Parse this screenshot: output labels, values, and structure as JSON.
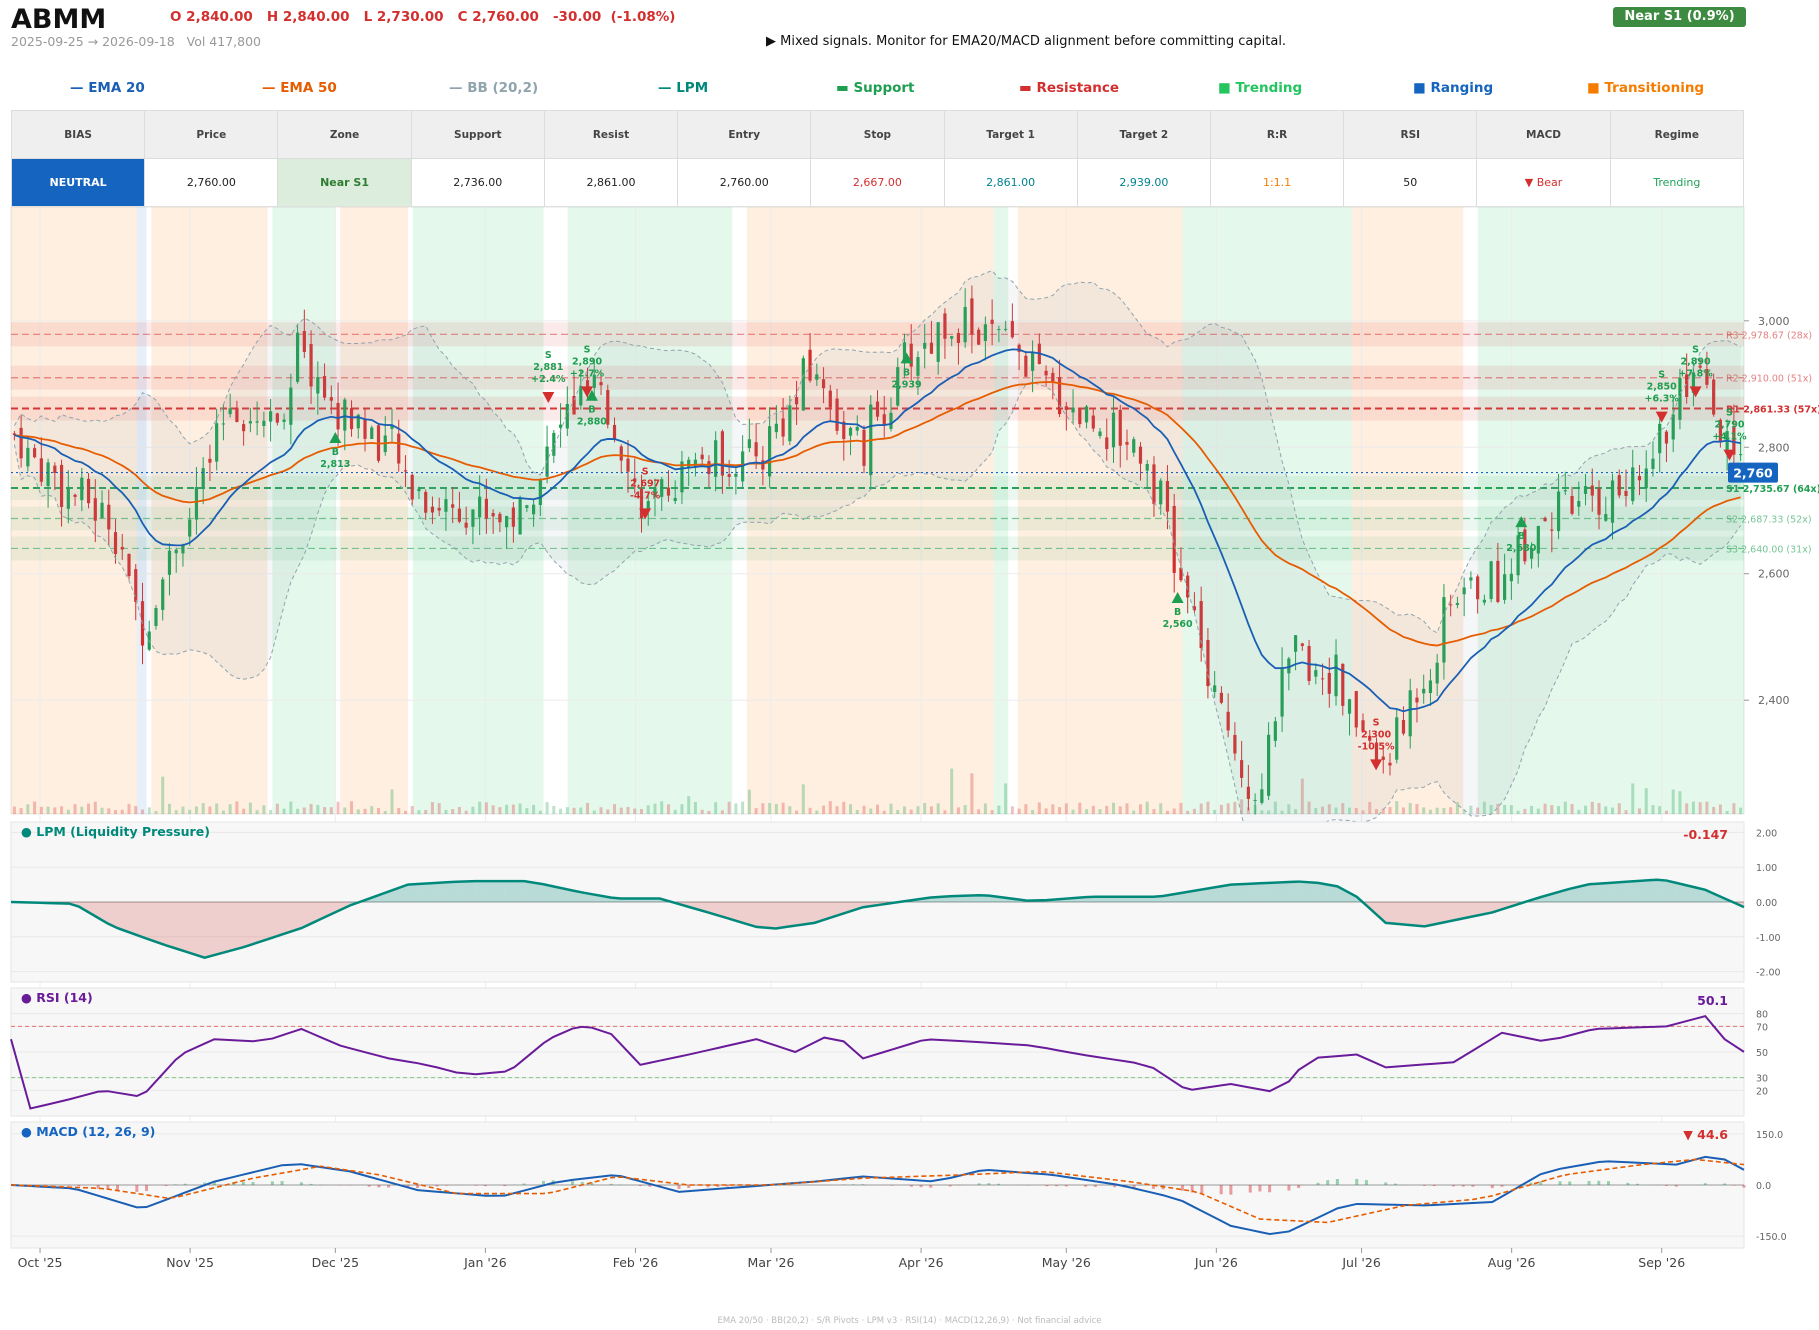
{
  "header": {
    "ticker": "ABMM",
    "ohlc": "O 2,840.00   H 2,840.00   L 2,730.00   C 2,760.00   -30.00  (-1.08%)",
    "date_range": "2025-09-25 → 2026-09-18   Vol 417,800",
    "signal": "▶  Mixed signals. Monitor for EMA20/MACD alignment before committing capital.",
    "zone_badge": "Near S1  (0.9%)"
  },
  "legend": [
    {
      "label": "— EMA 20",
      "color": "#1a5fb4"
    },
    {
      "label": "— EMA 50",
      "color": "#e65c00"
    },
    {
      "label": "— BB (20,2)",
      "color": "#90a4ae"
    },
    {
      "label": "— LPM",
      "color": "#00897b"
    },
    {
      "label": "▬  Support",
      "color": "#1e9e50"
    },
    {
      "label": "▬  Resistance",
      "color": "#d32f2f"
    },
    {
      "label": "■  Trending",
      "color": "#22c55e"
    },
    {
      "label": "■  Ranging",
      "color": "#1565c0"
    },
    {
      "label": "■  Transitioning",
      "color": "#f57c00"
    }
  ],
  "table": {
    "headers": [
      "BIAS",
      "Price",
      "Zone",
      "Support",
      "Resist",
      "Entry",
      "Stop",
      "Target 1",
      "Target 2",
      "R:R",
      "RSI",
      "MACD",
      "Regime"
    ],
    "values": [
      "NEUTRAL",
      "2,760.00",
      "Near S1",
      "2,736.00",
      "2,861.00",
      "2,760.00",
      "2,667.00",
      "2,861.00",
      "2,939.00",
      "1:1.1",
      "50",
      "▼ Bear",
      "Trending"
    ],
    "value_colors": [
      "#ffffff",
      "#222222",
      "#2e7d32",
      "#222222",
      "#222222",
      "#222222",
      "#d32f2f",
      "#00838f",
      "#00838f",
      "#f57c00",
      "#222222",
      "#d32f2f",
      "#22a35a"
    ]
  },
  "footer": "EMA 20/50  ·  BB(20,2)  ·  S/R Pivots  ·  LPM v3  ·  RSI(14)  ·  MACD(12,26,9)  ·  Not financial advice",
  "chart_data": [
    {
      "type": "candlestick",
      "title": "ABMM",
      "x_ticks": [
        "Oct '25",
        "Nov '25",
        "Dec '25",
        "Jan '26",
        "Feb '26",
        "Mar '26",
        "Apr '26",
        "May '26",
        "Jun '26",
        "Jul '26",
        "Aug '26",
        "Sep '26"
      ],
      "y_ticks": [
        2400,
        2600,
        2800,
        3000
      ],
      "ylim": [
        2220,
        3180
      ],
      "current_price": 2760,
      "current_price_label": "2,760",
      "levels": [
        {
          "label": "R3 2,978.67 (28x)",
          "value": 2978.67,
          "kind": "resistance"
        },
        {
          "label": "R2 2,910.00 (51x)",
          "value": 2910.0,
          "kind": "resistance"
        },
        {
          "label": "R1 2,861.33 (57x)",
          "value": 2861.33,
          "kind": "resistance"
        },
        {
          "label": "S1 2,735.67 (64x)",
          "value": 2735.67,
          "kind": "support"
        },
        {
          "label": "S2 2,687.33 (52x)",
          "value": 2687.33,
          "kind": "support"
        },
        {
          "label": "S3 2,640.00 (31x)",
          "value": 2640.0,
          "kind": "support"
        }
      ],
      "regimes": [
        {
          "kind": "transitioning",
          "from": "2025-09-25",
          "to": "2025-10-21"
        },
        {
          "kind": "ranging",
          "from": "2025-10-21",
          "to": "2025-10-23"
        },
        {
          "kind": "transitioning",
          "from": "2025-10-24",
          "to": "2025-11-17"
        },
        {
          "kind": "trending",
          "from": "2025-11-18",
          "to": "2025-12-01"
        },
        {
          "kind": "transitioning",
          "from": "2025-12-02",
          "to": "2025-12-16"
        },
        {
          "kind": "trending",
          "from": "2025-12-17",
          "to": "2026-01-13"
        },
        {
          "kind": "trending",
          "from": "2026-01-18",
          "to": "2026-02-21"
        },
        {
          "kind": "transitioning",
          "from": "2026-02-24",
          "to": "2026-04-16"
        },
        {
          "kind": "trending",
          "from": "2026-04-16",
          "to": "2026-04-19"
        },
        {
          "kind": "transitioning",
          "from": "2026-04-21",
          "to": "2026-05-25"
        },
        {
          "kind": "trending",
          "from": "2026-05-25",
          "to": "2026-06-29"
        },
        {
          "kind": "transitioning",
          "from": "2026-06-29",
          "to": "2026-07-22"
        },
        {
          "kind": "trending",
          "from": "2026-07-25",
          "to": "2026-09-18"
        }
      ],
      "signals": [
        {
          "side": "B",
          "date": "2025-12-01",
          "price": 2813,
          "label": "B\n2,813"
        },
        {
          "side": "S",
          "date": "2026-01-14",
          "price": 2881,
          "label": "S\n2,881\n+2.4%"
        },
        {
          "side": "S",
          "date": "2026-01-22",
          "price": 2890,
          "label": "S\n2,890\n+2.7%"
        },
        {
          "side": "B",
          "date": "2026-01-23",
          "price": 2880,
          "label": "B\n2,880"
        },
        {
          "side": "S",
          "date": "2026-02-03",
          "price": 2697,
          "label": "S\n2,697\n-4.7%"
        },
        {
          "side": "B",
          "date": "2026-03-29",
          "price": 2939,
          "label": "B\n2,939"
        },
        {
          "side": "B",
          "date": "2026-05-24",
          "price": 2560,
          "label": "B\n2,560"
        },
        {
          "side": "S",
          "date": "2026-07-04",
          "price": 2300,
          "label": "S\n2,300\n-10.5%"
        },
        {
          "side": "B",
          "date": "2026-08-03",
          "price": 2680,
          "label": "B\n2,680"
        },
        {
          "side": "S",
          "date": "2026-09-01",
          "price": 2850,
          "label": "S\n2,850\n+6.3%"
        },
        {
          "side": "S",
          "date": "2026-09-08",
          "price": 2890,
          "label": "S\n2,890\n+7.8%"
        },
        {
          "side": "S",
          "date": "2026-09-15",
          "price": 2790,
          "label": "S\n2,790\n+4.1%"
        }
      ],
      "close_path": [
        [
          "2025-09-25",
          2820
        ],
        [
          "2025-10-05",
          2740
        ],
        [
          "2025-10-15",
          2690
        ],
        [
          "2025-10-22",
          2520
        ],
        [
          "2025-10-28",
          2640
        ],
        [
          "2025-11-04",
          2740
        ],
        [
          "2025-11-08",
          2870
        ],
        [
          "2025-11-18",
          2840
        ],
        [
          "2025-11-24",
          2950
        ],
        [
          "2025-11-30",
          2860
        ],
        [
          "2025-12-06",
          2840
        ],
        [
          "2025-12-12",
          2800
        ],
        [
          "2025-12-20",
          2710
        ],
        [
          "2025-12-28",
          2710
        ],
        [
          "2026-01-06",
          2690
        ],
        [
          "2026-01-10",
          2700
        ],
        [
          "2026-01-16",
          2830
        ],
        [
          "2026-01-24",
          2900
        ],
        [
          "2026-02-04",
          2700
        ],
        [
          "2026-02-14",
          2780
        ],
        [
          "2026-02-26",
          2780
        ],
        [
          "2026-03-02",
          2820
        ],
        [
          "2026-03-10",
          2920
        ],
        [
          "2026-03-20",
          2790
        ],
        [
          "2026-03-30",
          2940
        ],
        [
          "2026-04-08",
          3000
        ],
        [
          "2026-04-20",
          2960
        ],
        [
          "2026-04-30",
          2880
        ],
        [
          "2026-05-08",
          2840
        ],
        [
          "2026-05-18",
          2800
        ],
        [
          "2026-05-26",
          2580
        ],
        [
          "2026-06-02",
          2390
        ],
        [
          "2026-06-10",
          2260
        ],
        [
          "2026-06-18",
          2470
        ],
        [
          "2026-06-26",
          2440
        ],
        [
          "2026-07-06",
          2290
        ],
        [
          "2026-07-14",
          2420
        ],
        [
          "2026-07-22",
          2570
        ],
        [
          "2026-07-31",
          2590
        ],
        [
          "2026-08-08",
          2690
        ],
        [
          "2026-08-18",
          2710
        ],
        [
          "2026-08-28",
          2740
        ],
        [
          "2026-09-04",
          2850
        ],
        [
          "2026-09-10",
          2900
        ],
        [
          "2026-09-18",
          2760
        ]
      ]
    },
    {
      "type": "area",
      "title": "● LPM (Liquidity Pressure)",
      "last_value": "-0.147",
      "y_ticks": [
        2,
        1,
        0,
        -1,
        -2
      ],
      "y_tick_labels": [
        "2.00",
        "1.00",
        "0.00",
        "-1.00",
        "-2.00"
      ],
      "ylim": [
        -2.3,
        2.3
      ],
      "path": [
        [
          "2025-09-25",
          0
        ],
        [
          "2025-10-08",
          -0.05
        ],
        [
          "2025-10-16",
          -0.7
        ],
        [
          "2025-10-26",
          -1.2
        ],
        [
          "2025-11-04",
          -1.6
        ],
        [
          "2025-11-12",
          -1.3
        ],
        [
          "2025-11-24",
          -0.75
        ],
        [
          "2025-12-04",
          -0.1
        ],
        [
          "2025-12-16",
          0.5
        ],
        [
          "2025-12-28",
          0.6
        ],
        [
          "2026-01-10",
          0.6
        ],
        [
          "2026-01-20",
          0.3
        ],
        [
          "2026-01-28",
          0.1
        ],
        [
          "2026-02-06",
          0.1
        ],
        [
          "2026-02-16",
          -0.3
        ],
        [
          "2026-02-28",
          -0.8
        ],
        [
          "2026-03-10",
          -0.6
        ],
        [
          "2026-03-20",
          -0.15
        ],
        [
          "2026-04-04",
          0.15
        ],
        [
          "2026-04-14",
          0.2
        ],
        [
          "2026-04-24",
          0.02
        ],
        [
          "2026-05-06",
          0.15
        ],
        [
          "2026-05-20",
          0.15
        ],
        [
          "2026-06-04",
          0.5
        ],
        [
          "2026-06-20",
          0.6
        ],
        [
          "2026-06-28",
          0.4
        ],
        [
          "2026-07-06",
          -0.6
        ],
        [
          "2026-07-14",
          -0.7
        ],
        [
          "2026-07-28",
          -0.3
        ],
        [
          "2026-08-06",
          0.1
        ],
        [
          "2026-08-16",
          0.5
        ],
        [
          "2026-09-01",
          0.65
        ],
        [
          "2026-09-10",
          0.35
        ],
        [
          "2026-09-18",
          -0.147
        ]
      ]
    },
    {
      "type": "line",
      "title": "● RSI (14)",
      "last_value": "50.1",
      "y_ticks": [
        80,
        70,
        50,
        30,
        20
      ],
      "ylim": [
        0,
        100
      ],
      "path": [
        [
          "2025-09-25",
          60
        ],
        [
          "2025-09-28",
          5
        ],
        [
          "2025-10-06",
          12
        ],
        [
          "2025-10-14",
          20
        ],
        [
          "2025-10-22",
          15
        ],
        [
          "2025-10-30",
          48
        ],
        [
          "2025-11-06",
          60
        ],
        [
          "2025-11-16",
          58
        ],
        [
          "2025-11-24",
          68
        ],
        [
          "2025-12-02",
          55
        ],
        [
          "2025-12-12",
          45
        ],
        [
          "2025-12-20",
          40
        ],
        [
          "2025-12-28",
          32
        ],
        [
          "2026-01-06",
          35
        ],
        [
          "2026-01-14",
          60
        ],
        [
          "2026-01-20",
          70
        ],
        [
          "2026-01-26",
          68
        ],
        [
          "2026-02-02",
          40
        ],
        [
          "2026-02-12",
          48
        ],
        [
          "2026-02-26",
          60
        ],
        [
          "2026-03-06",
          50
        ],
        [
          "2026-03-14",
          65
        ],
        [
          "2026-03-20",
          45
        ],
        [
          "2026-04-02",
          60
        ],
        [
          "2026-04-12",
          58
        ],
        [
          "2026-04-24",
          55
        ],
        [
          "2026-05-04",
          48
        ],
        [
          "2026-05-18",
          40
        ],
        [
          "2026-05-26",
          20
        ],
        [
          "2026-06-04",
          25
        ],
        [
          "2026-06-14",
          18
        ],
        [
          "2026-06-20",
          45
        ],
        [
          "2026-06-30",
          48
        ],
        [
          "2026-07-06",
          38
        ],
        [
          "2026-07-20",
          42
        ],
        [
          "2026-07-30",
          65
        ],
        [
          "2026-08-08",
          58
        ],
        [
          "2026-08-18",
          68
        ],
        [
          "2026-09-02",
          70
        ],
        [
          "2026-09-10",
          78
        ],
        [
          "2026-09-14",
          60
        ],
        [
          "2026-09-18",
          50.1
        ]
      ]
    },
    {
      "type": "line",
      "title": "● MACD (12, 26, 9)",
      "last_value": "▼ 44.6",
      "y_ticks": [
        150,
        0,
        -150
      ],
      "y_tick_labels": [
        "150.0",
        "0.0",
        "-150.0"
      ],
      "ylim": [
        -185,
        185
      ],
      "series": [
        {
          "name": "MACD",
          "path": [
            [
              "2025-09-25",
              0
            ],
            [
              "2025-10-08",
              -10
            ],
            [
              "2025-10-22",
              -70
            ],
            [
              "2025-11-06",
              10
            ],
            [
              "2025-11-22",
              65
            ],
            [
              "2025-12-04",
              40
            ],
            [
              "2025-12-18",
              -15
            ],
            [
              "2026-01-04",
              -35
            ],
            [
              "2026-01-16",
              10
            ],
            [
              "2026-01-28",
              30
            ],
            [
              "2026-02-10",
              -20
            ],
            [
              "2026-02-24",
              -5
            ],
            [
              "2026-03-10",
              10
            ],
            [
              "2026-03-20",
              25
            ],
            [
              "2026-04-04",
              10
            ],
            [
              "2026-04-14",
              45
            ],
            [
              "2026-04-28",
              30
            ],
            [
              "2026-05-12",
              0
            ],
            [
              "2026-05-24",
              -40
            ],
            [
              "2026-06-04",
              -120
            ],
            [
              "2026-06-14",
              -150
            ],
            [
              "2026-06-28",
              -55
            ],
            [
              "2026-07-14",
              -60
            ],
            [
              "2026-07-28",
              -50
            ],
            [
              "2026-08-08",
              40
            ],
            [
              "2026-08-20",
              70
            ],
            [
              "2026-09-04",
              60
            ],
            [
              "2026-09-12",
              90
            ],
            [
              "2026-09-18",
              44.6
            ]
          ]
        },
        {
          "name": "Signal",
          "path": [
            [
              "2025-09-25",
              0
            ],
            [
              "2025-10-14",
              -10
            ],
            [
              "2025-10-28",
              -40
            ],
            [
              "2025-11-14",
              20
            ],
            [
              "2025-11-28",
              55
            ],
            [
              "2025-12-10",
              30
            ],
            [
              "2025-12-26",
              -25
            ],
            [
              "2026-01-14",
              -25
            ],
            [
              "2026-01-28",
              25
            ],
            [
              "2026-02-12",
              0
            ],
            [
              "2026-03-01",
              0
            ],
            [
              "2026-03-20",
              20
            ],
            [
              "2026-04-10",
              30
            ],
            [
              "2026-04-26",
              40
            ],
            [
              "2026-05-14",
              10
            ],
            [
              "2026-05-28",
              -20
            ],
            [
              "2026-06-10",
              -100
            ],
            [
              "2026-06-24",
              -110
            ],
            [
              "2026-07-10",
              -60
            ],
            [
              "2026-07-26",
              -40
            ],
            [
              "2026-08-12",
              30
            ],
            [
              "2026-08-28",
              60
            ],
            [
              "2026-09-08",
              75
            ],
            [
              "2026-09-18",
              60
            ]
          ]
        }
      ]
    }
  ]
}
